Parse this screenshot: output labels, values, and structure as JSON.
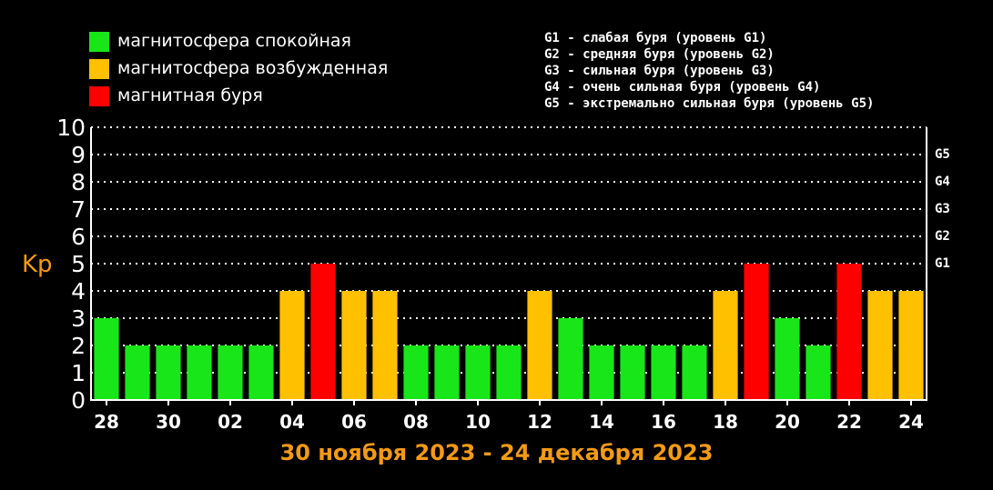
{
  "legend": {
    "items": [
      {
        "label": "магнитосфера спокойная",
        "color": "#19e619"
      },
      {
        "label": "магнитосфера возбужденная",
        "color": "#ffc000"
      },
      {
        "label": "магнитная буря",
        "color": "#ff0000"
      }
    ],
    "g_levels": [
      "G1 - слабая буря (уровень G1)",
      "G2 - средняя буря (уровень G2)",
      "G3 - сильная буря (уровень G3)",
      "G4 - очень сильная буря (уровень G4)",
      "G5 - экстремально сильная буря (уровень G5)"
    ]
  },
  "chart_data": {
    "type": "bar",
    "title": "",
    "subtitle": "30 ноября 2023 - 24 декабря 2023",
    "ylabel": "Kp",
    "xlabel": "",
    "ylim": [
      0,
      10
    ],
    "yticks": [
      0,
      1,
      2,
      3,
      4,
      5,
      6,
      7,
      8,
      9,
      10
    ],
    "grid": true,
    "g_scale_ticks": [
      {
        "label": "G1",
        "kp": 5
      },
      {
        "label": "G2",
        "kp": 6
      },
      {
        "label": "G3",
        "kp": 7
      },
      {
        "label": "G4",
        "kp": 8
      },
      {
        "label": "G5",
        "kp": 9
      }
    ],
    "xtick_labels": [
      "28",
      "30",
      "02",
      "04",
      "06",
      "08",
      "10",
      "12",
      "14",
      "16",
      "18",
      "20",
      "22",
      "24"
    ],
    "values": [
      3,
      2,
      2,
      2,
      2,
      2,
      4,
      5,
      4,
      4,
      2,
      2,
      2,
      2,
      4,
      3,
      2,
      2,
      2,
      2,
      4,
      5,
      3,
      2,
      5,
      4,
      4
    ],
    "color_rule": {
      "quiet_max": 3,
      "active": 4,
      "storm_min": 5
    },
    "colors": {
      "quiet": "#19e619",
      "active": "#ffc000",
      "storm": "#ff0000",
      "grid": "#ffffff"
    }
  }
}
